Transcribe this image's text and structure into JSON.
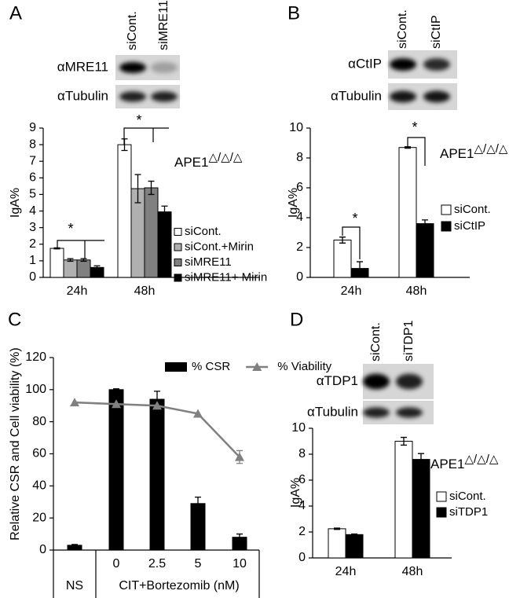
{
  "chart_data": [
    {
      "type": "bar",
      "panel": "A",
      "blot": {
        "lanes": [
          "siCont.",
          "siMRE11"
        ],
        "rows": [
          "αMRE11",
          "αTubulin"
        ]
      },
      "ylabel": "IgA%",
      "annotation": {
        "text": "APE1",
        "superscript": "△/△/△"
      },
      "significance": [
        "*",
        "*"
      ],
      "categories": [
        "24h",
        "48h"
      ],
      "series": [
        {
          "name": "siCont.",
          "color": "#ffffff",
          "values": [
            1.75,
            8.0
          ],
          "errors": [
            0.03,
            0.35
          ]
        },
        {
          "name": "siCont.+Mirin",
          "color": "#b0b0b0",
          "values": [
            1.05,
            5.35
          ],
          "errors": [
            0.08,
            0.85
          ]
        },
        {
          "name": "siMRE11",
          "color": "#808080",
          "values": [
            1.05,
            5.4
          ],
          "errors": [
            0.08,
            0.4
          ]
        },
        {
          "name": "siMRE11+ Mirin",
          "color": "#000000",
          "values": [
            0.6,
            3.95
          ],
          "errors": [
            0.1,
            0.35
          ]
        }
      ],
      "ylim": [
        0,
        9
      ],
      "yticks": [
        0,
        1,
        2,
        3,
        4,
        5,
        6,
        7,
        8,
        9
      ]
    },
    {
      "type": "bar",
      "panel": "B",
      "blot": {
        "lanes": [
          "siCont.",
          "siCtIP"
        ],
        "rows": [
          "αCtIP",
          "αTubulin"
        ]
      },
      "ylabel": "IgA%",
      "annotation": {
        "text": "APE1",
        "superscript": "△/△/△"
      },
      "significance": [
        "*",
        "*"
      ],
      "categories": [
        "24h",
        "48h"
      ],
      "series": [
        {
          "name": "siCont.",
          "color": "#ffffff",
          "values": [
            2.5,
            8.7
          ],
          "errors": [
            0.2,
            0.05
          ]
        },
        {
          "name": "siCtIP",
          "color": "#000000",
          "values": [
            0.6,
            3.6
          ],
          "errors": [
            0.45,
            0.25
          ]
        }
      ],
      "ylim": [
        0,
        10
      ],
      "yticks": [
        0,
        2,
        4,
        6,
        8,
        10
      ]
    },
    {
      "type": "combo",
      "panel": "C",
      "ylabel": "Relative CSR and Cell viability (%)",
      "categories": [
        "NS",
        "0",
        "2.5",
        "5",
        "10"
      ],
      "x_group_label": "CIT+Bortezomib (nM)",
      "series": [
        {
          "name": "% CSR",
          "kind": "bar",
          "color": "#000000",
          "values": [
            3,
            100,
            94,
            29,
            8
          ],
          "errors": [
            0.5,
            0.5,
            5,
            4,
            2
          ]
        },
        {
          "name": "% Viability",
          "kind": "line",
          "marker": "triangle",
          "color": "#808080",
          "values": [
            92,
            91,
            90,
            85,
            58
          ],
          "errors": [
            null,
            null,
            null,
            null,
            4
          ]
        }
      ],
      "ylim": [
        0,
        120
      ],
      "yticks": [
        0,
        20,
        40,
        60,
        80,
        100,
        120
      ]
    },
    {
      "type": "bar",
      "panel": "D",
      "blot": {
        "lanes": [
          "siCont.",
          "siTDP1"
        ],
        "rows": [
          "αTDP1",
          "αTubulin"
        ]
      },
      "ylabel": "IgA%",
      "annotation": {
        "text": "APE1",
        "superscript": "△/△/△"
      },
      "categories": [
        "24h",
        "48h"
      ],
      "series": [
        {
          "name": "siCont.",
          "color": "#ffffff",
          "values": [
            2.25,
            9.0
          ],
          "errors": [
            0.05,
            0.3
          ]
        },
        {
          "name": "siTDP1",
          "color": "#000000",
          "values": [
            1.8,
            7.6
          ],
          "errors": [
            0.05,
            0.45
          ]
        }
      ],
      "ylim": [
        0,
        10
      ],
      "yticks": [
        0,
        2,
        4,
        6,
        8,
        10
      ]
    }
  ]
}
